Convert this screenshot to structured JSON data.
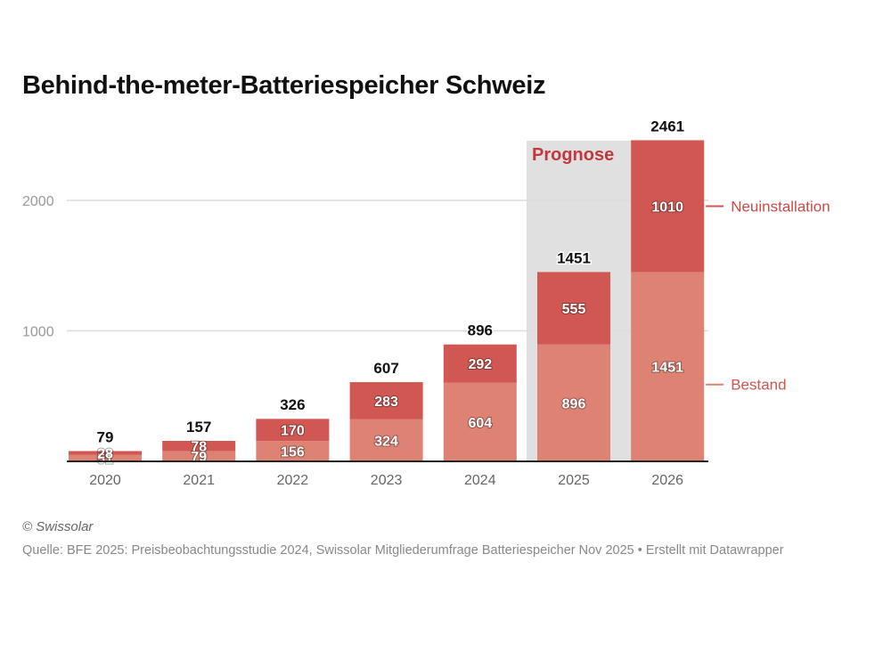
{
  "chart_data": {
    "type": "bar",
    "stacked": true,
    "title": "Behind-the-meter-Batteriespeicher Schweiz",
    "xlabel": "",
    "ylabel": "",
    "categories": [
      "2020",
      "2021",
      "2022",
      "2023",
      "2024",
      "2025",
      "2026"
    ],
    "series": [
      {
        "name": "Bestand",
        "color": "#de8274",
        "values": [
          51,
          79,
          156,
          324,
          604,
          896,
          1451
        ]
      },
      {
        "name": "Neuinstallation",
        "color": "#d15752",
        "values": [
          28,
          78,
          170,
          283,
          292,
          555,
          1010
        ]
      }
    ],
    "totals": [
      79,
      157,
      326,
      607,
      896,
      1451,
      2461
    ],
    "ylim": [
      0,
      2500
    ],
    "yticks": [
      1000,
      2000
    ],
    "grid": true,
    "legend": "right, direct labels",
    "annotation": {
      "label": "Prognose",
      "range": [
        "2025",
        "2026"
      ],
      "color": "#c0383d",
      "background": "#e0e0e0"
    }
  },
  "footer": {
    "copyright": "© Swissolar",
    "source": "Quelle: BFE 2025: Preisbeobachtungsstudie 2024, Swissolar Mitgliederumfrage Batteriespeicher Nov 2025 • Erstellt mit Datawrapper"
  }
}
